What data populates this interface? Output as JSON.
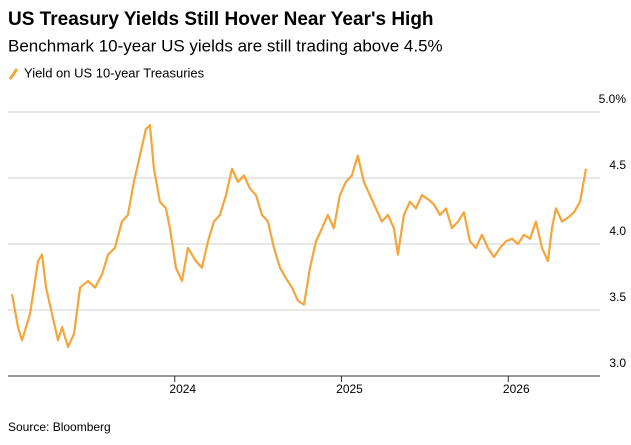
{
  "chart_data": {
    "type": "line",
    "title": "US Treasury Yields Still Hover Near Year's High",
    "subtitle": "Benchmark 10-year US yields are still trading above 4.5%",
    "source": "Source: Bloomberg",
    "x": [
      2023.024,
      2023.06,
      2023.084,
      2023.132,
      2023.18,
      2023.204,
      2023.228,
      2023.264,
      2023.3,
      2023.324,
      2023.36,
      2023.396,
      2023.432,
      2023.48,
      2023.522,
      2023.564,
      2023.6,
      2023.641,
      2023.683,
      2023.719,
      2023.755,
      2023.791,
      2023.827,
      2023.851,
      2023.875,
      2023.911,
      2023.947,
      2023.971,
      2024.007,
      2024.043,
      2024.079,
      2024.127,
      2024.163,
      2024.199,
      2024.235,
      2024.271,
      2024.307,
      2024.343,
      2024.379,
      2024.415,
      2024.451,
      2024.487,
      2024.523,
      2024.559,
      2024.595,
      2024.631,
      2024.667,
      2024.703,
      2024.739,
      2024.775,
      2024.811,
      2024.847,
      2024.883,
      2024.918,
      2024.954,
      2024.99,
      2025.026,
      2025.062,
      2025.098,
      2025.134,
      2025.17,
      2025.206,
      2025.242,
      2025.278,
      2025.314,
      2025.338,
      2025.374,
      2025.41,
      2025.446,
      2025.482,
      2025.518,
      2025.554,
      2025.59,
      2025.626,
      2025.662,
      2025.698,
      2025.734,
      2025.77,
      2025.806,
      2025.842,
      2025.878,
      2025.914,
      2025.95,
      2025.986,
      2026.022,
      2026.058,
      2026.094,
      2026.13,
      2026.166,
      2026.202,
      2026.238,
      2026.262,
      2026.286,
      2026.322,
      2026.358,
      2026.394,
      2026.43,
      2026.466
    ],
    "series": [
      {
        "name": "Yield on US 10-year Treasuries",
        "color": "#f5a53a",
        "values": [
          3.62,
          3.37,
          3.27,
          3.47,
          3.87,
          3.92,
          3.67,
          3.47,
          3.27,
          3.37,
          3.22,
          3.32,
          3.67,
          3.72,
          3.67,
          3.77,
          3.92,
          3.97,
          4.17,
          4.22,
          4.47,
          4.67,
          4.87,
          4.9,
          4.57,
          4.32,
          4.27,
          4.12,
          3.82,
          3.72,
          3.97,
          3.87,
          3.82,
          4.02,
          4.17,
          4.22,
          4.37,
          4.57,
          4.47,
          4.52,
          4.42,
          4.37,
          4.22,
          4.17,
          3.97,
          3.82,
          3.74,
          3.67,
          3.57,
          3.54,
          3.82,
          4.02,
          4.12,
          4.22,
          4.12,
          4.37,
          4.47,
          4.52,
          4.67,
          4.47,
          4.37,
          4.27,
          4.17,
          4.22,
          4.12,
          3.92,
          4.22,
          4.32,
          4.27,
          4.37,
          4.34,
          4.3,
          4.22,
          4.27,
          4.12,
          4.17,
          4.24,
          4.02,
          3.97,
          4.07,
          3.97,
          3.9,
          3.97,
          4.02,
          4.04,
          4,
          4.07,
          4.04,
          4.17,
          3.97,
          3.87,
          4.12,
          4.27,
          4.17,
          4.2,
          4.24,
          4.32,
          4.57
        ]
      }
    ],
    "xlim": [
      2023,
      2026.55
    ],
    "xticks": [
      2024,
      2025,
      2026
    ],
    "ylim": [
      3,
      5
    ],
    "yticks": [
      {
        "value": 3,
        "label": "3.0"
      },
      3.5,
      {
        "value": 4,
        "label": "4.0"
      },
      4.5,
      {
        "value": 5,
        "label": "5.0%"
      }
    ],
    "grid": true
  }
}
